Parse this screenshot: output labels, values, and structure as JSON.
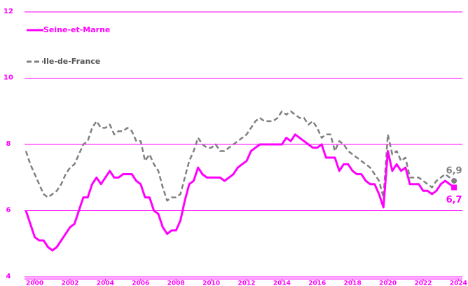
{
  "chart_data": {
    "type": "line",
    "xlim": [
      2000,
      2025
    ],
    "xticks": [
      {
        "value": 2000.5,
        "label": "2000"
      },
      {
        "value": 2002.5,
        "label": "2002"
      },
      {
        "value": 2004.5,
        "label": "2004"
      },
      {
        "value": 2006.5,
        "label": "2006"
      },
      {
        "value": 2008.5,
        "label": "2008"
      },
      {
        "value": 2010.5,
        "label": "2010"
      },
      {
        "value": 2012.5,
        "label": "2012"
      },
      {
        "value": 2014.5,
        "label": "2014"
      },
      {
        "value": 2016.5,
        "label": "2016"
      },
      {
        "value": 2018.5,
        "label": "2018"
      },
      {
        "value": 2020.5,
        "label": "2020"
      },
      {
        "value": 2022.5,
        "label": "2022"
      },
      {
        "value": 2024.5,
        "label": "2024"
      }
    ],
    "ylim": [
      4,
      12
    ],
    "yticks": [
      4,
      6,
      8,
      10,
      12
    ],
    "grid": true,
    "x": [
      2000,
      2000.25,
      2000.5,
      2000.75,
      2001,
      2001.25,
      2001.5,
      2001.75,
      2002,
      2002.25,
      2002.5,
      2002.75,
      2003,
      2003.25,
      2003.5,
      2003.75,
      2004,
      2004.25,
      2004.5,
      2004.75,
      2005,
      2005.25,
      2005.5,
      2005.75,
      2006,
      2006.25,
      2006.5,
      2006.75,
      2007,
      2007.25,
      2007.5,
      2007.75,
      2008,
      2008.25,
      2008.5,
      2008.75,
      2009,
      2009.25,
      2009.5,
      2009.75,
      2010,
      2010.25,
      2010.5,
      2010.75,
      2011,
      2011.25,
      2011.5,
      2011.75,
      2012,
      2012.25,
      2012.5,
      2012.75,
      2013,
      2013.25,
      2013.5,
      2013.75,
      2014,
      2014.25,
      2014.5,
      2014.75,
      2015,
      2015.25,
      2015.5,
      2015.75,
      2016,
      2016.25,
      2016.5,
      2016.75,
      2017,
      2017.25,
      2017.5,
      2017.75,
      2018,
      2018.25,
      2018.5,
      2018.75,
      2019,
      2019.25,
      2019.5,
      2019.75,
      2020,
      2020.25,
      2020.5,
      2020.75,
      2021,
      2021.25,
      2021.5,
      2021.75,
      2022,
      2022.25,
      2022.5,
      2022.75,
      2023,
      2023.25,
      2023.5,
      2023.75,
      2024,
      2024.25
    ],
    "series": [
      {
        "name": "Seine-et-Marne",
        "color": "#ff00ff",
        "dash": false,
        "end_label": "6,7",
        "values": [
          6.0,
          5.6,
          5.2,
          5.1,
          5.1,
          4.9,
          4.8,
          4.9,
          5.1,
          5.3,
          5.5,
          5.6,
          6.0,
          6.4,
          6.4,
          6.8,
          7.0,
          6.8,
          7.0,
          7.2,
          7.0,
          7.0,
          7.1,
          7.1,
          7.1,
          6.9,
          6.8,
          6.4,
          6.4,
          6.0,
          5.9,
          5.5,
          5.3,
          5.4,
          5.4,
          5.7,
          6.3,
          6.8,
          6.9,
          7.3,
          7.1,
          7.0,
          7.0,
          7.0,
          7.0,
          6.9,
          7.0,
          7.1,
          7.3,
          7.4,
          7.5,
          7.8,
          7.9,
          8.0,
          8.0,
          8.0,
          8.0,
          8.0,
          8.0,
          8.2,
          8.1,
          8.3,
          8.2,
          8.1,
          8.0,
          7.9,
          7.9,
          8.0,
          7.6,
          7.6,
          7.6,
          7.2,
          7.4,
          7.4,
          7.2,
          7.1,
          7.1,
          6.9,
          6.8,
          6.8,
          6.5,
          6.1,
          7.8,
          7.2,
          7.4,
          7.2,
          7.3,
          6.8,
          6.8,
          6.8,
          6.6,
          6.6,
          6.5,
          6.6,
          6.8,
          6.9,
          6.8,
          6.7
        ]
      },
      {
        "name": "Ile-de-France",
        "color": "#808080",
        "dash": true,
        "end_label": "6,9",
        "values": [
          7.8,
          7.4,
          7.1,
          6.8,
          6.5,
          6.4,
          6.5,
          6.6,
          6.8,
          7.1,
          7.3,
          7.4,
          7.7,
          8.0,
          8.1,
          8.5,
          8.7,
          8.5,
          8.5,
          8.6,
          8.3,
          8.4,
          8.4,
          8.5,
          8.4,
          8.1,
          8.1,
          7.5,
          7.7,
          7.4,
          7.2,
          6.7,
          6.3,
          6.4,
          6.4,
          6.5,
          7.0,
          7.5,
          7.8,
          8.2,
          8.0,
          7.9,
          7.9,
          8.0,
          7.8,
          7.8,
          7.9,
          8.0,
          8.1,
          8.2,
          8.3,
          8.5,
          8.7,
          8.8,
          8.7,
          8.7,
          8.7,
          8.8,
          9.0,
          8.9,
          9.0,
          8.9,
          8.8,
          8.8,
          8.6,
          8.7,
          8.5,
          8.2,
          8.3,
          8.3,
          7.8,
          8.1,
          8.0,
          7.8,
          7.7,
          7.6,
          7.5,
          7.4,
          7.3,
          7.1,
          6.9,
          6.4,
          8.3,
          7.7,
          7.8,
          7.5,
          7.6,
          7.0,
          7.0,
          7.0,
          6.9,
          6.8,
          6.7,
          6.9,
          7.0,
          7.1,
          7.0,
          6.9
        ]
      }
    ]
  }
}
